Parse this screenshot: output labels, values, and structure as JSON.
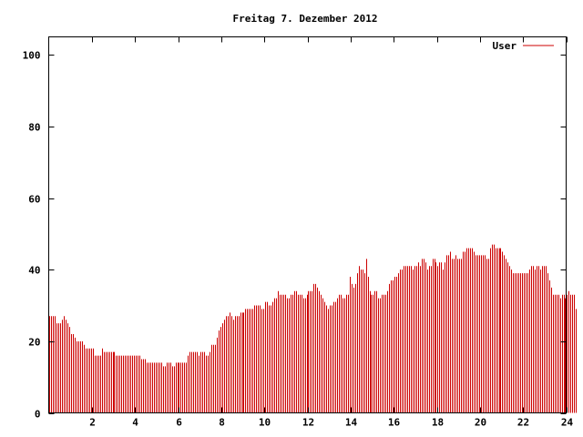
{
  "chart_data": {
    "type": "bar",
    "title": "Freitag 7. Dezember 2012",
    "xlabel": "",
    "ylabel": "",
    "xlim": [
      0,
      24
    ],
    "ylim": [
      0,
      105
    ],
    "x_ticks": [
      "2",
      "4",
      "6",
      "8",
      "10",
      "12",
      "14",
      "16",
      "18",
      "20",
      "22",
      "24"
    ],
    "y_ticks": [
      "0",
      "20",
      "40",
      "60",
      "80",
      "100"
    ],
    "grid": false,
    "legend_position": "top-right",
    "series": [
      {
        "name": "User",
        "color": "#cc0000",
        "interval_hours": 0.08333,
        "values": [
          27,
          27,
          27,
          27,
          25,
          25,
          25,
          26,
          27,
          26,
          25,
          24,
          22,
          22,
          21,
          20,
          20,
          20,
          20,
          19,
          18,
          18,
          18,
          18,
          18,
          16,
          16,
          16,
          16,
          18,
          17,
          17,
          17,
          17,
          17,
          17,
          17,
          16,
          16,
          16,
          16,
          16,
          16,
          16,
          16,
          16,
          16,
          16,
          16,
          16,
          16,
          15,
          15,
          15,
          14,
          14,
          14,
          14,
          14,
          14,
          14,
          14,
          14,
          13,
          13,
          14,
          14,
          14,
          13,
          13,
          14,
          14,
          14,
          14,
          14,
          14,
          14,
          16,
          17,
          17,
          17,
          17,
          17,
          16,
          17,
          17,
          17,
          16,
          16,
          17,
          19,
          19,
          19,
          21,
          23,
          24,
          25,
          26,
          27,
          27,
          28,
          27,
          26,
          27,
          27,
          27,
          28,
          28,
          28,
          29,
          29,
          29,
          29,
          29,
          30,
          30,
          30,
          30,
          29,
          29,
          31,
          31,
          30,
          30,
          31,
          32,
          32,
          34,
          33,
          33,
          33,
          33,
          32,
          32,
          33,
          33,
          34,
          34,
          33,
          33,
          33,
          32,
          32,
          33,
          34,
          34,
          34,
          36,
          36,
          35,
          34,
          33,
          32,
          31,
          30,
          29,
          30,
          30,
          31,
          31,
          32,
          33,
          33,
          32,
          32,
          33,
          33,
          38,
          36,
          35,
          36,
          39,
          41,
          40,
          40,
          39,
          43,
          38,
          34,
          33,
          33,
          34,
          34,
          32,
          32,
          33,
          33,
          33,
          34,
          36,
          37,
          37,
          38,
          38,
          39,
          40,
          40,
          41,
          41,
          41,
          41,
          41,
          40,
          41,
          41,
          42,
          41,
          43,
          43,
          42,
          40,
          41,
          41,
          43,
          43,
          42,
          41,
          42,
          42,
          40,
          42,
          44,
          44,
          45,
          43,
          43,
          44,
          43,
          43,
          43,
          45,
          45,
          46,
          46,
          46,
          46,
          45,
          44,
          44,
          44,
          44,
          44,
          44,
          43,
          43,
          46,
          47,
          47,
          46,
          46,
          46,
          46,
          45,
          44,
          43,
          42,
          41,
          40,
          39,
          39,
          39,
          39,
          39,
          39,
          39,
          39,
          39,
          40,
          41,
          41,
          40,
          41,
          41,
          40,
          41,
          41,
          41,
          39,
          37,
          35,
          33,
          33,
          33,
          33,
          32,
          33,
          33,
          32,
          33,
          34,
          33,
          33,
          33,
          29
        ]
      }
    ]
  }
}
